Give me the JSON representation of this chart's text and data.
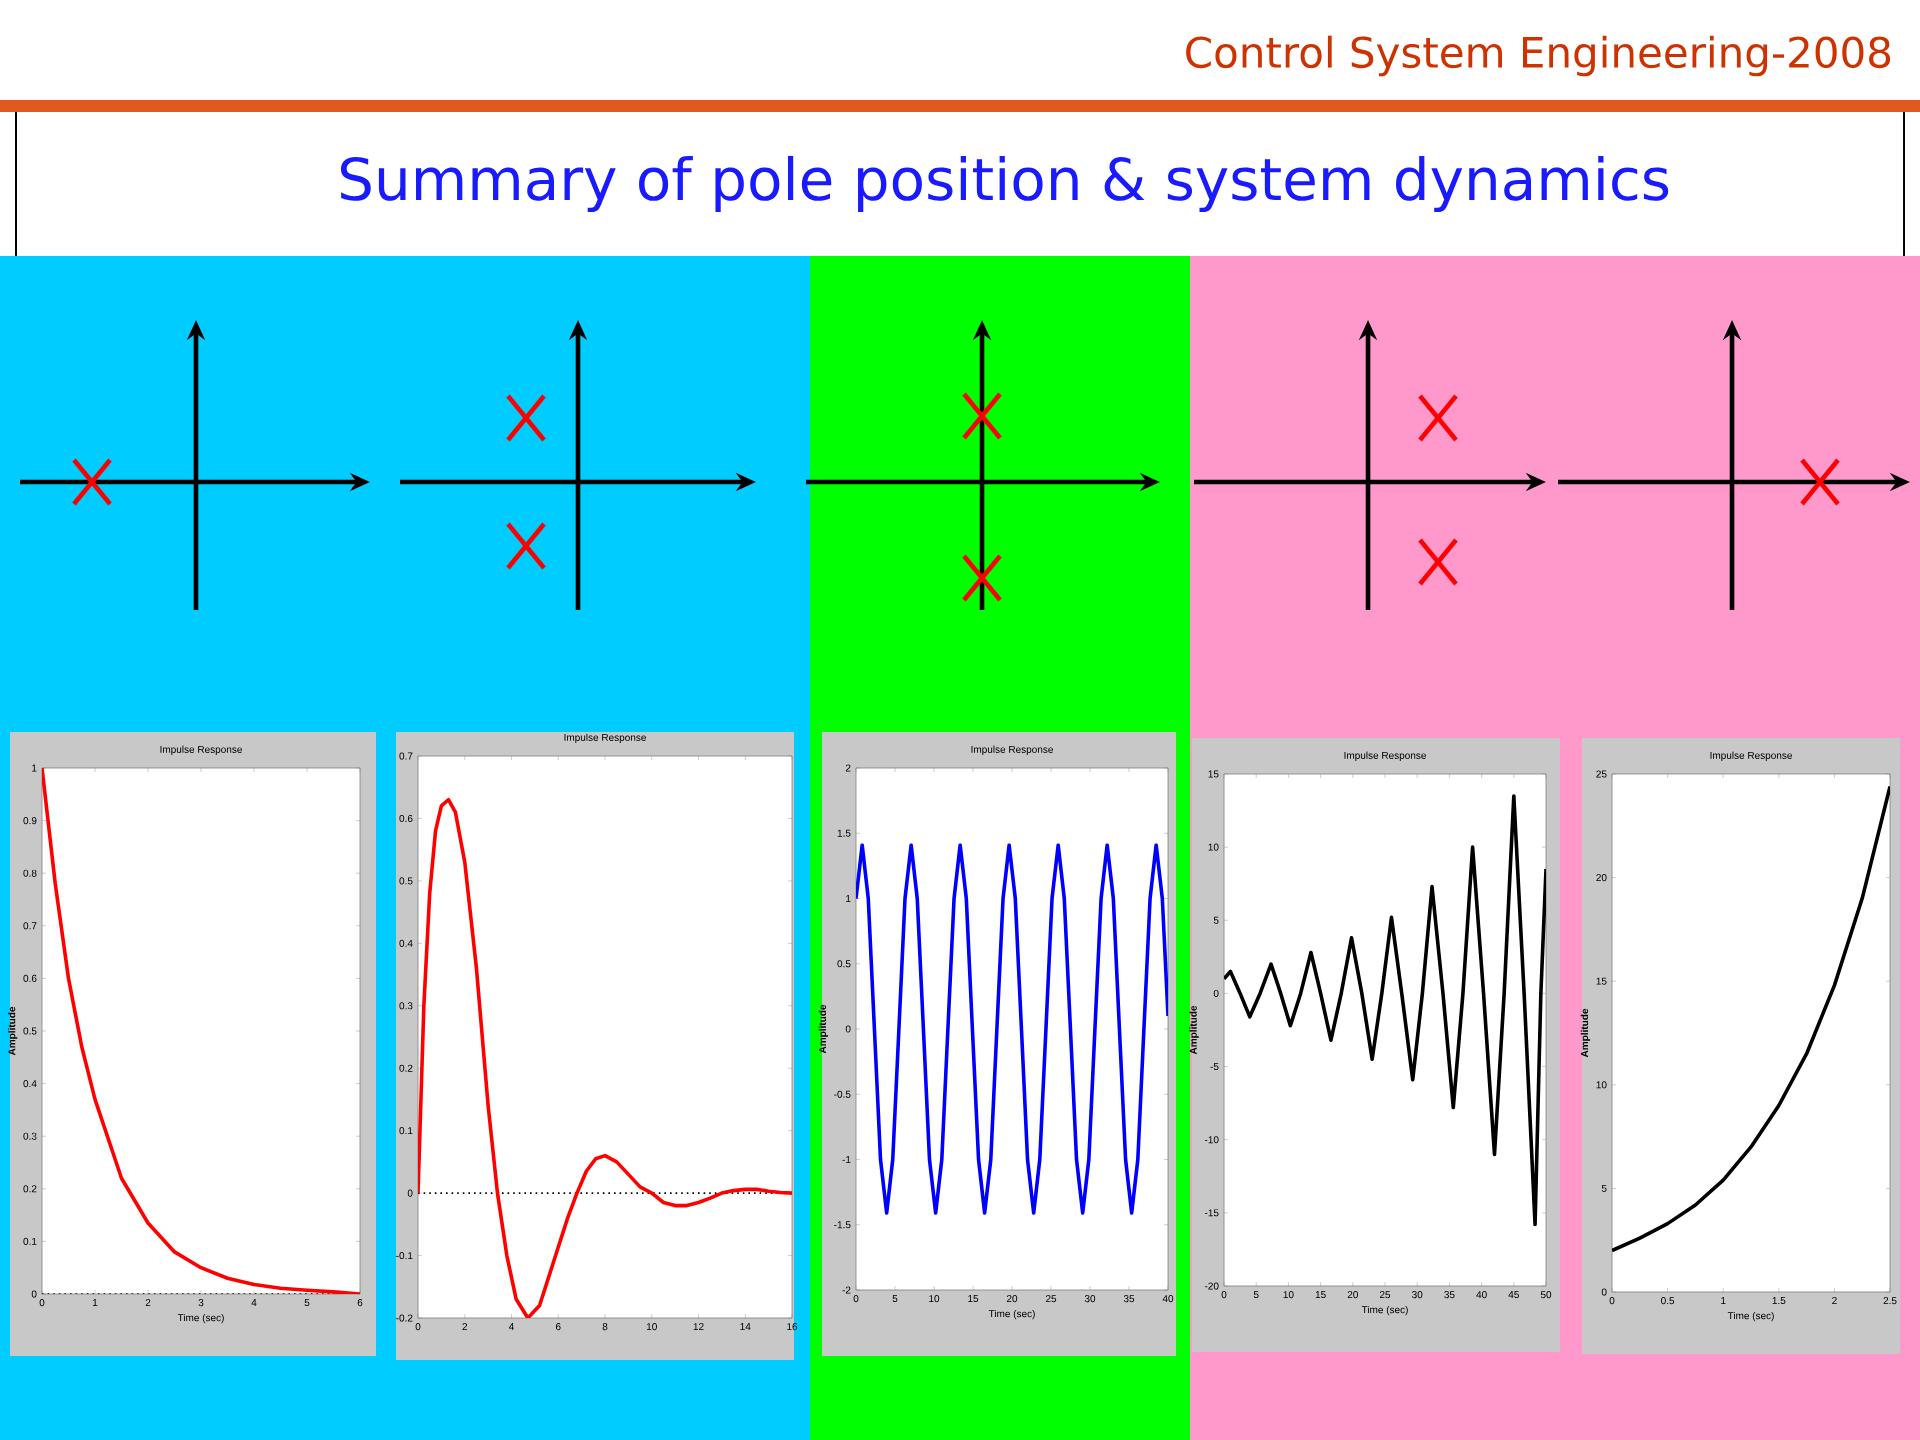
{
  "chart_data": [
    {
      "type": "other",
      "title": "Summary of pole position & system dynamics",
      "annotations": [
        "Control System Engineering-2008"
      ]
    },
    {
      "type": "line",
      "title": "Impulse Response",
      "xlabel": "Time (sec)",
      "ylabel": "Amplitude",
      "color": "#ff0000",
      "xlim": [
        0,
        6
      ],
      "ylim": [
        0,
        1
      ],
      "xticks": [
        0,
        1,
        2,
        3,
        4,
        5,
        6
      ],
      "yticks": [
        0,
        0.1,
        0.2,
        0.3,
        0.4,
        0.5,
        0.6,
        0.7,
        0.8,
        0.9,
        1
      ],
      "x": [
        0,
        0.25,
        0.5,
        0.75,
        1,
        1.5,
        2,
        2.5,
        3,
        3.5,
        4,
        4.5,
        5,
        5.5,
        6
      ],
      "values": [
        1,
        0.78,
        0.6,
        0.47,
        0.37,
        0.22,
        0.135,
        0.08,
        0.05,
        0.03,
        0.018,
        0.011,
        0.007,
        0.004,
        0
      ],
      "ref_lines": [
        {
          "axis": "y",
          "value": 0,
          "line_style": "dotted",
          "color": "#000000"
        }
      ]
    },
    {
      "type": "line",
      "title": "Impulse Response",
      "color": "#ff0000",
      "xlim": [
        0,
        16
      ],
      "ylim": [
        -0.2,
        0.7
      ],
      "xticks": [
        0,
        2,
        4,
        6,
        8,
        10,
        12,
        14,
        16
      ],
      "yticks": [
        -0.2,
        -0.1,
        0,
        0.1,
        0.2,
        0.3,
        0.4,
        0.5,
        0.6,
        0.7
      ],
      "x": [
        0,
        0.25,
        0.5,
        0.75,
        1,
        1.3,
        1.6,
        2,
        2.5,
        3,
        3.4,
        3.8,
        4.2,
        4.7,
        5.2,
        5.8,
        6.4,
        6.8,
        7.2,
        7.6,
        8,
        8.5,
        9,
        9.5,
        10,
        10.5,
        11,
        11.5,
        12,
        12.5,
        13,
        13.5,
        14,
        14.5,
        15,
        15.5,
        16
      ],
      "values": [
        0,
        0.3,
        0.48,
        0.58,
        0.62,
        0.63,
        0.61,
        0.53,
        0.36,
        0.14,
        0,
        -0.1,
        -0.17,
        -0.2,
        -0.18,
        -0.11,
        -0.04,
        0,
        0.035,
        0.055,
        0.06,
        0.05,
        0.03,
        0.01,
        0,
        -0.015,
        -0.02,
        -0.02,
        -0.015,
        -0.008,
        0,
        0.004,
        0.006,
        0.006,
        0.003,
        0.001,
        0
      ],
      "ref_lines": [
        {
          "axis": "y",
          "value": 0,
          "line_style": "dotted",
          "color": "#000000"
        }
      ]
    },
    {
      "type": "line",
      "title": "Impulse Response",
      "xlabel": "Time (sec)",
      "ylabel": "Amplitude",
      "color": "#0000ff",
      "xlim": [
        0,
        40
      ],
      "ylim": [
        -2,
        2
      ],
      "xticks": [
        0,
        5,
        10,
        15,
        20,
        25,
        30,
        35,
        40
      ],
      "yticks": [
        -2,
        -1.5,
        -1,
        -0.5,
        0,
        0.5,
        1,
        1.5,
        2
      ],
      "x": [
        0,
        0.79,
        1.57,
        2.36,
        3.14,
        3.93,
        4.71,
        5.5,
        6.28,
        7.07,
        7.85,
        8.64,
        9.42,
        10.21,
        11,
        11.78,
        12.57,
        13.35,
        14.14,
        14.92,
        15.71,
        16.49,
        17.28,
        18.06,
        18.85,
        19.63,
        20.42,
        21.21,
        21.99,
        22.78,
        23.56,
        24.35,
        25.13,
        25.92,
        26.7,
        27.49,
        28.27,
        29.06,
        29.85,
        30.63,
        31.42,
        32.2,
        32.99,
        33.77,
        34.56,
        35.34,
        36.13,
        36.91,
        37.7,
        38.48,
        39.27,
        40
      ],
      "values": [
        1,
        1.41,
        1,
        0,
        -1,
        -1.41,
        -1,
        0,
        1,
        1.41,
        1,
        0,
        -1,
        -1.41,
        -1,
        0,
        1,
        1.41,
        1,
        0,
        -1,
        -1.41,
        -1,
        0,
        1,
        1.41,
        1,
        0,
        -1,
        -1.41,
        -1,
        0,
        1,
        1.41,
        1,
        0,
        -1,
        -1.41,
        -1,
        0,
        1,
        1.41,
        1,
        0,
        -1,
        -1.41,
        -1,
        0,
        1,
        1.41,
        1,
        0.1
      ]
    },
    {
      "type": "line",
      "title": "Impulse Response",
      "xlabel": "Time (sec)",
      "ylabel": "Amplitude",
      "color": "#000000",
      "xlim": [
        0,
        50
      ],
      "ylim": [
        -20,
        15
      ],
      "xticks": [
        0,
        5,
        10,
        15,
        20,
        25,
        30,
        35,
        40,
        45,
        50
      ],
      "yticks": [
        -20,
        -15,
        -10,
        -5,
        0,
        5,
        10,
        15
      ],
      "x": [
        0,
        1,
        2.5,
        4,
        5.6,
        7.3,
        8.8,
        10.3,
        11.9,
        13.5,
        15,
        16.6,
        18.2,
        19.8,
        21.4,
        23,
        24.5,
        26,
        27.6,
        29.3,
        30.8,
        32.3,
        34,
        35.6,
        37.1,
        38.6,
        40.3,
        42,
        43.5,
        45,
        46.6,
        48.3,
        49.2,
        50
      ],
      "values": [
        1,
        1.5,
        0,
        -1.6,
        0,
        2,
        0,
        -2.2,
        0,
        2.8,
        0,
        -3.2,
        0,
        3.8,
        0,
        -4.5,
        0,
        5.2,
        0,
        -5.9,
        0,
        7.3,
        0,
        -7.8,
        0,
        10,
        0,
        -11,
        0,
        13.5,
        0,
        -15.8,
        0,
        8.5
      ]
    },
    {
      "type": "line",
      "title": "Impulse Response",
      "xlabel": "Time (sec)",
      "ylabel": "Amplitude",
      "color": "#000000",
      "xlim": [
        0,
        2.5
      ],
      "ylim": [
        0,
        25
      ],
      "xticks": [
        0,
        0.5,
        1,
        1.5,
        2,
        2.5
      ],
      "yticks": [
        0,
        5,
        10,
        15,
        20,
        25
      ],
      "x": [
        0,
        0.25,
        0.5,
        0.75,
        1,
        1.25,
        1.5,
        1.75,
        2,
        2.25,
        2.5
      ],
      "values": [
        2,
        2.6,
        3.3,
        4.2,
        5.4,
        7,
        9,
        11.5,
        14.8,
        19,
        24.4
      ]
    }
  ]
}
